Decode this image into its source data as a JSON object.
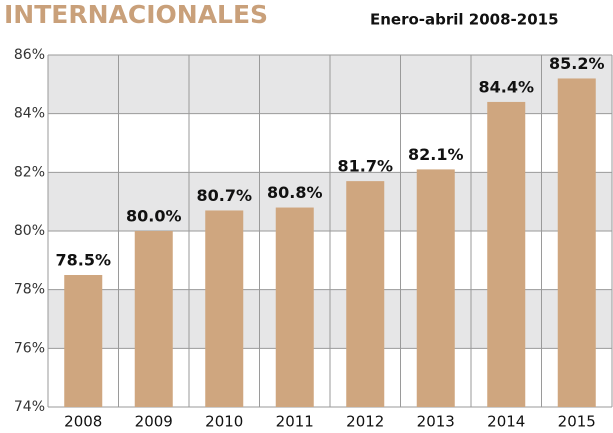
{
  "chart_data": {
    "type": "bar",
    "title": "INTERNACIONALES",
    "subtitle": "Enero-abril 2008-2015",
    "categories": [
      "2008",
      "2009",
      "2010",
      "2011",
      "2012",
      "2013",
      "2014",
      "2015"
    ],
    "values": [
      78.5,
      80.0,
      80.7,
      80.8,
      81.7,
      82.1,
      84.4,
      85.2
    ],
    "value_labels": [
      "78.5%",
      "80.0%",
      "80.7%",
      "80.8%",
      "81.7%",
      "82.1%",
      "84.4%",
      "85.2%"
    ],
    "color": "#cfa67f",
    "ylim": [
      74,
      86
    ],
    "yticks": [
      {
        "value": 74,
        "label": "74%"
      },
      {
        "value": 76,
        "label": "76%"
      },
      {
        "value": 78,
        "label": "78%"
      },
      {
        "value": 80,
        "label": "80%"
      },
      {
        "value": 82,
        "label": "82%"
      },
      {
        "value": 84,
        "label": "84%"
      },
      {
        "value": 86,
        "label": "86%"
      }
    ],
    "grid": true
  }
}
